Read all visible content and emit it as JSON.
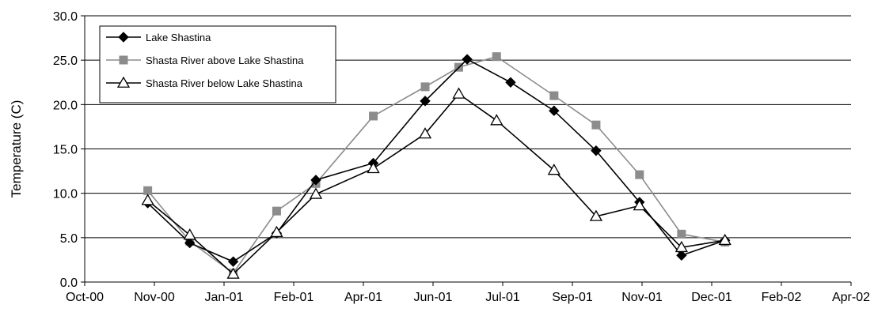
{
  "chart_data": {
    "type": "line",
    "title": "",
    "xlabel": "",
    "ylabel": "Temperature (C)",
    "ylim": [
      0,
      30
    ],
    "yticks": [
      "0.0",
      "5.0",
      "10.0",
      "15.0",
      "20.0",
      "25.0",
      "30.0"
    ],
    "xlim": [
      "2000-10-01",
      "2002-04-01"
    ],
    "xticks": [
      "Oct-00",
      "Nov-00",
      "Jan-01",
      "Feb-01",
      "Apr-01",
      "Jun-01",
      "Jul-01",
      "Sep-01",
      "Nov-01",
      "Dec-01",
      "Feb-02",
      "Apr-02"
    ],
    "grid": "horizontal",
    "legend_position": "top-left",
    "series": [
      {
        "name": "Lake Shastina",
        "color": "#000000",
        "marker": "diamond",
        "x": [
          "2000-11-15",
          "2000-12-15",
          "2001-01-15",
          "2001-02-15",
          "2001-03-15",
          "2001-04-25",
          "2001-06-01",
          "2001-07-01",
          "2001-08-01",
          "2001-09-01",
          "2001-10-01",
          "2001-11-01",
          "2001-12-01",
          "2002-01-01"
        ],
        "y": [
          8.9,
          4.4,
          2.3,
          5.5,
          11.5,
          13.4,
          20.4,
          25.1,
          22.5,
          19.3,
          14.8,
          9.0,
          3.0,
          4.7
        ]
      },
      {
        "name": "Shasta River above Lake Shastina",
        "color": "#8c8c8c",
        "marker": "square",
        "x": [
          "2000-11-15",
          "2000-12-15",
          "2001-01-15",
          "2001-02-15",
          "2001-03-15",
          "2001-04-25",
          "2001-06-01",
          "2001-06-25",
          "2001-07-22",
          "2001-09-01",
          "2001-10-01",
          "2001-11-01",
          "2001-12-01",
          "2002-01-01"
        ],
        "y": [
          10.3,
          4.6,
          1.0,
          8.0,
          11.1,
          18.7,
          22.0,
          24.2,
          25.4,
          21.0,
          17.7,
          12.1,
          5.4,
          4.5
        ]
      },
      {
        "name": "Shasta River below Lake Shastina",
        "color": "#000000",
        "marker": "triangle-open",
        "x": [
          "2000-11-15",
          "2000-12-15",
          "2001-01-15",
          "2001-02-15",
          "2001-03-15",
          "2001-04-25",
          "2001-06-01",
          "2001-06-25",
          "2001-07-22",
          "2001-09-01",
          "2001-10-01",
          "2001-11-01",
          "2001-12-01",
          "2002-01-01"
        ],
        "y": [
          9.2,
          5.3,
          0.9,
          5.6,
          9.9,
          12.8,
          16.7,
          21.2,
          18.2,
          12.6,
          7.4,
          8.6,
          3.9,
          4.7
        ]
      }
    ]
  }
}
